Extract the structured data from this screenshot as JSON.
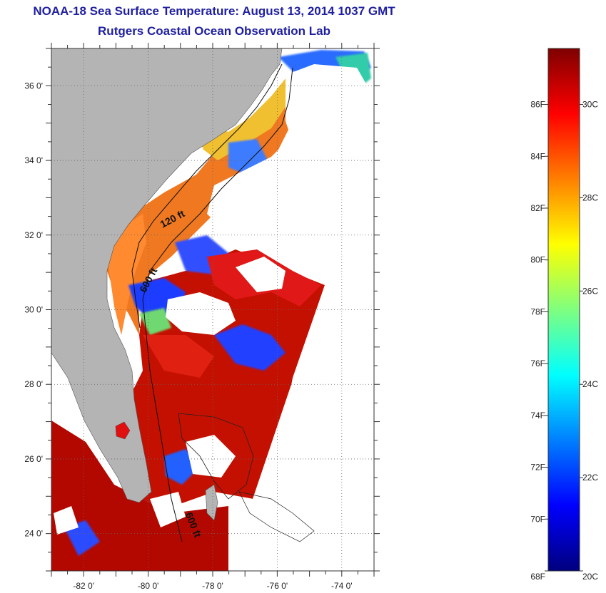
{
  "header": {
    "title": "NOAA-18 Sea Surface Temperature:  August 13, 2014 1037 GMT",
    "subtitle": "Rutgers Coastal Ocean Observation Lab"
  },
  "map": {
    "lon_range": [
      -83,
      -73
    ],
    "lat_range": [
      23,
      37
    ],
    "grid": "dotted",
    "land_color": "#b4b4b4",
    "no_data_color": "#ffffff",
    "lon_labels": [
      {
        "lon": -82,
        "text": "-82 0'"
      },
      {
        "lon": -80,
        "text": "-80 0'"
      },
      {
        "lon": -78,
        "text": "-78 0'"
      },
      {
        "lon": -76,
        "text": "-76 0'"
      },
      {
        "lon": -74,
        "text": "-74 0'"
      }
    ],
    "lat_labels": [
      {
        "lat": 36,
        "text": "36 0'"
      },
      {
        "lat": 34,
        "text": "34 0'"
      },
      {
        "lat": 32,
        "text": "32 0'"
      },
      {
        "lat": 30,
        "text": "30 0'"
      },
      {
        "lat": 28,
        "text": "28 0'"
      },
      {
        "lat": 26,
        "text": "26 0'"
      },
      {
        "lat": 24,
        "text": "24 0'"
      }
    ],
    "contour_labels": [
      {
        "text": "120 ft",
        "lon": -79.2,
        "lat": 32.35,
        "angle": -28
      },
      {
        "text": "600 ft",
        "lon": -79.9,
        "lat": 30.75,
        "angle": -62
      },
      {
        "text": "600 ft",
        "lon": -78.7,
        "lat": 24.2,
        "angle": 68
      }
    ]
  },
  "colorbar": {
    "min_c": 20,
    "max_c": 31.2,
    "stops": [
      "#00007f",
      "#0000ff",
      "#007fff",
      "#00ffff",
      "#7fff7f",
      "#ffff00",
      "#ff7f00",
      "#ff0000",
      "#7f0000"
    ],
    "f_ticks": [
      {
        "value": 68,
        "text": "68F"
      },
      {
        "value": 70,
        "text": "70F"
      },
      {
        "value": 72,
        "text": "72F"
      },
      {
        "value": 74,
        "text": "74F"
      },
      {
        "value": 76,
        "text": "76F"
      },
      {
        "value": 78,
        "text": "78F"
      },
      {
        "value": 80,
        "text": "80F"
      },
      {
        "value": 82,
        "text": "82F"
      },
      {
        "value": 84,
        "text": "84F"
      },
      {
        "value": 86,
        "text": "86F"
      }
    ],
    "c_ticks": [
      {
        "value": 20,
        "text": "20C"
      },
      {
        "value": 22,
        "text": "22C"
      },
      {
        "value": 24,
        "text": "24C"
      },
      {
        "value": 26,
        "text": "26C"
      },
      {
        "value": 28,
        "text": "28C"
      },
      {
        "value": 30,
        "text": "30C"
      }
    ]
  }
}
